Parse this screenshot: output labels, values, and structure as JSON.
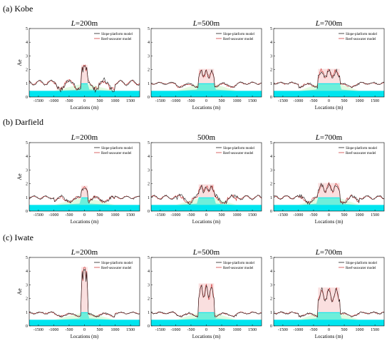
{
  "colors": {
    "slope_line": "#202020",
    "reef_line": "#d04040",
    "reef_fill": "#00e5ef",
    "slope_fill": "#c8f5c8",
    "pink_band": "#f3b9b9"
  },
  "rows": [
    {
      "label": "(a) Kobe",
      "panels": [
        {
          "title_prefix": "L",
          "title_suffix": "=200m",
          "half_width": 100,
          "peak": 2.25,
          "base": 1.05,
          "osc": 0.3,
          "show_ylabel": true
        },
        {
          "title_prefix": "L",
          "title_suffix": "=500m",
          "half_width": 250,
          "peak": 1.95,
          "base": 1.0,
          "osc": 0.12,
          "show_ylabel": false
        },
        {
          "title_prefix": "L",
          "title_suffix": "=700m",
          "half_width": 350,
          "peak": 1.95,
          "base": 1.0,
          "osc": 0.12,
          "show_ylabel": false
        }
      ]
    },
    {
      "label": "(b) Darfield",
      "panels": [
        {
          "title_prefix": "L",
          "title_suffix": "=200m",
          "half_width": 100,
          "peak": 1.75,
          "base": 1.0,
          "osc": 0.18,
          "show_ylabel": true
        },
        {
          "title_prefix": "",
          "title_suffix": "500m",
          "half_width": 250,
          "peak": 1.85,
          "base": 1.0,
          "osc": 0.25,
          "show_ylabel": false
        },
        {
          "title_prefix": "L",
          "title_suffix": "=700m",
          "half_width": 350,
          "peak": 1.95,
          "base": 1.0,
          "osc": 0.22,
          "show_ylabel": false
        }
      ]
    },
    {
      "label": "(c) Iwate",
      "panels": [
        {
          "title_prefix": "L",
          "title_suffix": "=200m",
          "half_width": 100,
          "peak": 4.2,
          "base": 0.95,
          "osc": 0.1,
          "show_ylabel": true
        },
        {
          "title_prefix": "L",
          "title_suffix": "=500m",
          "half_width": 250,
          "peak": 3.0,
          "base": 0.95,
          "osc": 0.1,
          "show_ylabel": false
        },
        {
          "title_prefix": "L",
          "title_suffix": "=700m",
          "half_width": 350,
          "peak": 2.7,
          "base": 0.95,
          "osc": 0.1,
          "show_ylabel": false
        }
      ]
    }
  ],
  "chart_data": {
    "type": "line",
    "series": [
      {
        "name": "Slope-platform model"
      },
      {
        "name": "Reef-seawater model"
      }
    ],
    "xlabel": "Locations (m)",
    "ylabel": "Ae",
    "xlim": [
      -1800,
      1800
    ],
    "ylim": [
      0,
      5
    ],
    "xticks": [
      -1500,
      -1000,
      -500,
      0,
      500,
      1000,
      1500
    ],
    "yticks": [
      0,
      1,
      2,
      3,
      4,
      5
    ]
  }
}
